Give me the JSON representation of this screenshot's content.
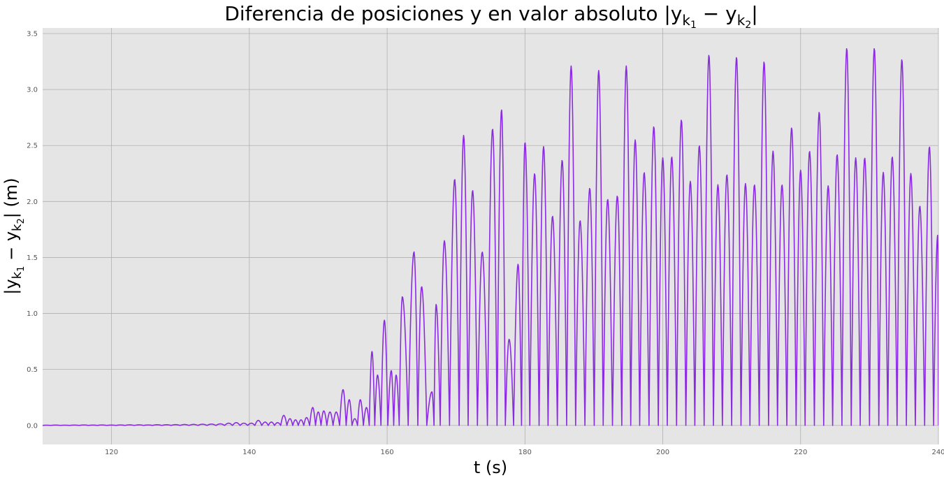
{
  "chart_data": {
    "type": "line",
    "title": "Diferencia de posiciones y en valor absoluto |y_k1 − y_k2|",
    "title_parts": {
      "main": "Diferencia de posiciones y en valor absoluto |y",
      "sub1": "k",
      "subsub1": "1",
      "minus": " − y",
      "sub2": "k",
      "subsub2": "2",
      "close": "|"
    },
    "xlabel": "t (s)",
    "ylabel": "|y_k1 − y_k2| (m)",
    "ylabel_parts": {
      "open": "|y",
      "sub1": "k",
      "subsub1": "1",
      "minus": " − y",
      "sub2": "k",
      "subsub2": "2",
      "close": "| (m)"
    },
    "xlim": [
      110,
      240
    ],
    "ylim": [
      -0.17,
      3.55
    ],
    "x_ticks": [
      120,
      140,
      160,
      180,
      200,
      220,
      240
    ],
    "x_tick_labels": [
      "120",
      "140",
      "160",
      "180",
      "200",
      "220",
      "240"
    ],
    "y_ticks": [
      0.0,
      0.5,
      1.0,
      1.5,
      2.0,
      2.5,
      3.0,
      3.5
    ],
    "y_tick_labels": [
      "0.0",
      "0.5",
      "1.0",
      "1.5",
      "2.0",
      "2.5",
      "3.0",
      "3.5"
    ],
    "grid": true,
    "legend": "none",
    "colors": {
      "line": "#8a2be2",
      "plot_bg": "#e5e5e5",
      "grid": "#b0b0b0"
    },
    "series": [
      {
        "peaks": [
          [
            110.5,
            0.002
          ],
          [
            111.9,
            0.003
          ],
          [
            113.2,
            0.002
          ],
          [
            114.6,
            0.003
          ],
          [
            116.0,
            0.004
          ],
          [
            117.3,
            0.003
          ],
          [
            118.6,
            0.004
          ],
          [
            120.0,
            0.003
          ],
          [
            121.3,
            0.004
          ],
          [
            122.6,
            0.005
          ],
          [
            124.0,
            0.005
          ],
          [
            125.3,
            0.004
          ],
          [
            126.6,
            0.006
          ],
          [
            128.0,
            0.006
          ],
          [
            129.3,
            0.007
          ],
          [
            130.6,
            0.008
          ],
          [
            131.9,
            0.009
          ],
          [
            133.2,
            0.011
          ],
          [
            134.5,
            0.012
          ],
          [
            135.8,
            0.014
          ],
          [
            137.0,
            0.02
          ],
          [
            138.1,
            0.025
          ],
          [
            139.2,
            0.02
          ],
          [
            140.3,
            0.02
          ],
          [
            141.3,
            0.045
          ],
          [
            142.3,
            0.03
          ],
          [
            143.2,
            0.03
          ],
          [
            144.1,
            0.025
          ],
          [
            145.0,
            0.09
          ],
          [
            145.9,
            0.06
          ],
          [
            146.7,
            0.05
          ],
          [
            147.5,
            0.05
          ],
          [
            148.3,
            0.07
          ],
          [
            149.2,
            0.16
          ],
          [
            150.0,
            0.12
          ],
          [
            150.8,
            0.13
          ],
          [
            151.7,
            0.12
          ],
          [
            152.6,
            0.12
          ],
          [
            153.6,
            0.32
          ],
          [
            154.5,
            0.23
          ],
          [
            155.3,
            0.06
          ],
          [
            156.1,
            0.23
          ],
          [
            157.0,
            0.16
          ],
          [
            157.8,
            0.66
          ],
          [
            158.6,
            0.45
          ],
          [
            159.6,
            0.94
          ],
          [
            160.6,
            0.49
          ],
          [
            161.3,
            0.45
          ],
          [
            162.2,
            1.15
          ],
          [
            163.9,
            1.55
          ],
          [
            165.0,
            1.24
          ],
          [
            166.5,
            0.3
          ],
          [
            167.1,
            1.08
          ],
          [
            168.3,
            1.65
          ],
          [
            169.8,
            2.2
          ],
          [
            171.1,
            2.59
          ],
          [
            172.4,
            2.1
          ],
          [
            173.8,
            1.55
          ],
          [
            175.3,
            2.65
          ],
          [
            176.6,
            2.82
          ],
          [
            177.7,
            0.77
          ],
          [
            179.0,
            1.44
          ],
          [
            180.0,
            2.53
          ],
          [
            181.4,
            2.25
          ],
          [
            182.7,
            2.49
          ],
          [
            184.0,
            1.87
          ],
          [
            185.4,
            2.37
          ],
          [
            186.7,
            3.21
          ],
          [
            188.0,
            1.83
          ],
          [
            189.4,
            2.12
          ],
          [
            190.7,
            3.17
          ],
          [
            192.0,
            2.02
          ],
          [
            193.4,
            2.05
          ],
          [
            194.7,
            3.21
          ],
          [
            196.0,
            2.55
          ],
          [
            197.3,
            2.26
          ],
          [
            198.7,
            2.67
          ],
          [
            200.0,
            2.39
          ],
          [
            201.3,
            2.4
          ],
          [
            202.7,
            2.73
          ],
          [
            204.0,
            2.18
          ],
          [
            205.3,
            2.5
          ],
          [
            206.7,
            3.31
          ],
          [
            208.0,
            2.15
          ],
          [
            209.3,
            2.24
          ],
          [
            210.7,
            3.29
          ],
          [
            212.0,
            2.16
          ],
          [
            213.3,
            2.15
          ],
          [
            214.7,
            3.25
          ],
          [
            216.0,
            2.45
          ],
          [
            217.3,
            2.15
          ],
          [
            218.7,
            2.66
          ],
          [
            220.0,
            2.28
          ],
          [
            221.3,
            2.45
          ],
          [
            222.7,
            2.8
          ],
          [
            224.0,
            2.14
          ],
          [
            225.3,
            2.42
          ],
          [
            226.7,
            3.37
          ],
          [
            228.0,
            2.39
          ],
          [
            229.3,
            2.39
          ],
          [
            230.7,
            3.37
          ],
          [
            232.0,
            2.26
          ],
          [
            233.3,
            2.4
          ],
          [
            234.7,
            3.27
          ],
          [
            236.0,
            2.25
          ],
          [
            237.3,
            1.96
          ],
          [
            238.7,
            2.49
          ],
          [
            239.9,
            1.7
          ]
        ]
      }
    ]
  }
}
